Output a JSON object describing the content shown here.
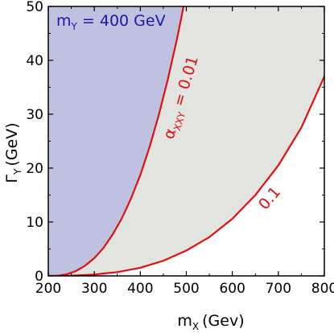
{
  "chart_data": {
    "type": "area",
    "xlim": [
      200,
      800
    ],
    "ylim": [
      0,
      50
    ],
    "x_ticks": [
      "200",
      "300",
      "400",
      "500",
      "600",
      "700",
      "800"
    ],
    "y_ticks": [
      "0",
      "10",
      "20",
      "30",
      "40",
      "50"
    ],
    "xlabel": {
      "main": "m",
      "sub": "X",
      "unit": "(Gev)"
    },
    "ylabel": {
      "main": "Γ",
      "sub": "Y",
      "unit": "(GeV)"
    },
    "mass_label": {
      "main": "m",
      "sub": "Y",
      "rest": " = 400 GeV"
    },
    "series": [
      {
        "label_main": "α",
        "label_sub": "XXY",
        "label_rest": " = 0.01",
        "x": [
          200,
          220,
          240,
          260,
          280,
          300,
          320,
          340,
          360,
          380,
          400,
          420,
          440,
          460,
          480,
          500
        ],
        "y": [
          0.0,
          0.03,
          0.3,
          0.9,
          1.9,
          3.3,
          5.2,
          7.7,
          10.7,
          14.4,
          18.7,
          23.9,
          29.8,
          36.5,
          44.1,
          52.5
        ]
      },
      {
        "label_main": "0.1",
        "x": [
          200,
          250,
          300,
          350,
          400,
          450,
          500,
          550,
          600,
          650,
          700,
          750,
          800
        ],
        "y": [
          0.0,
          0.05,
          0.25,
          0.7,
          1.5,
          2.8,
          4.7,
          7.2,
          10.6,
          15.0,
          20.5,
          27.5,
          37.0
        ]
      }
    ],
    "colors": {
      "curve": "#e01010",
      "region_blue": "#bfc1e0",
      "region_gray": "#e2e4e0",
      "mass_label": "#1a1aa8"
    },
    "grid": false
  }
}
